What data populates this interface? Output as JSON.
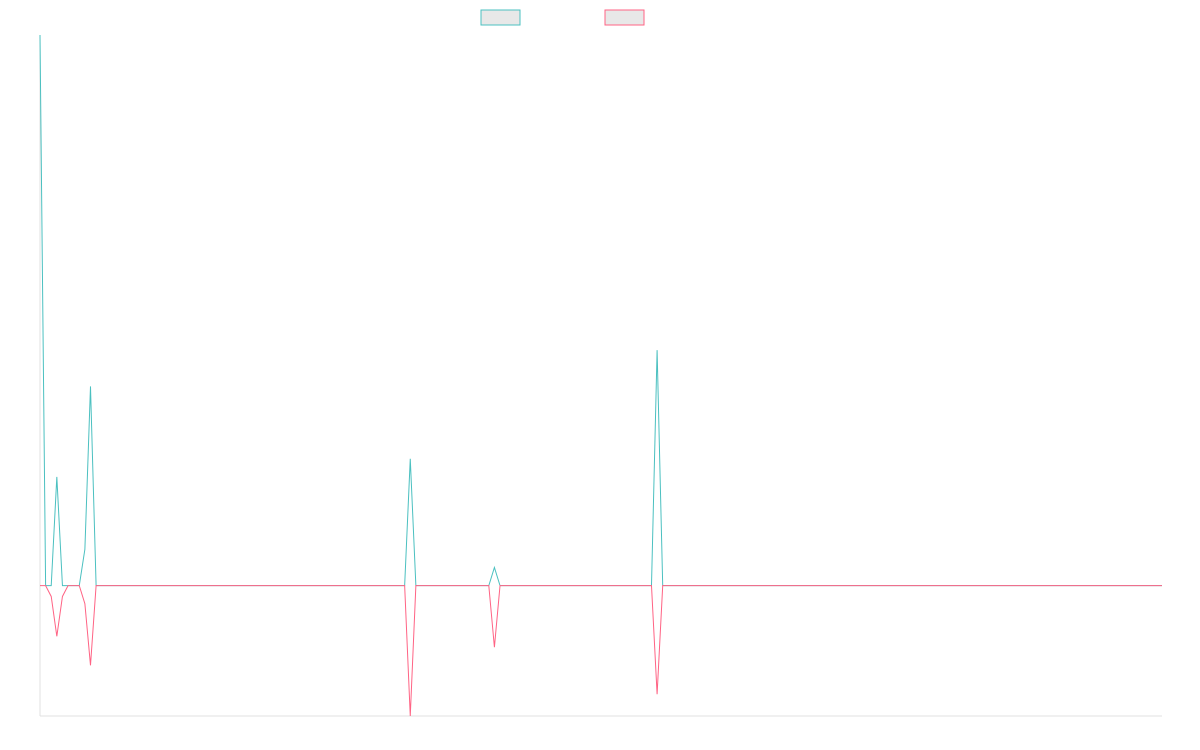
{
  "chart_data": {
    "type": "line",
    "title": "",
    "xlabel": "",
    "ylabel": "",
    "ylim": [
      -36,
      152
    ],
    "grid": false,
    "legend": "top-center",
    "series": [
      {
        "name": "",
        "color": "#4bc0c0",
        "fill": "#e8e8e8",
        "points": [
          [
            0,
            152
          ],
          [
            1,
            0
          ],
          [
            2,
            0
          ],
          [
            3,
            30
          ],
          [
            4,
            0
          ],
          [
            5,
            0
          ],
          [
            6,
            0
          ],
          [
            7,
            0
          ],
          [
            8,
            10
          ],
          [
            9,
            55
          ],
          [
            10,
            0
          ],
          [
            65,
            0
          ],
          [
            66,
            35
          ],
          [
            67,
            0
          ],
          [
            80,
            0
          ],
          [
            81,
            5
          ],
          [
            82,
            0
          ],
          [
            109,
            0
          ],
          [
            110,
            65
          ],
          [
            111,
            0
          ],
          [
            200,
            0
          ]
        ]
      },
      {
        "name": "",
        "color": "#ff6384",
        "fill": "#e8e8e8",
        "points": [
          [
            0,
            0
          ],
          [
            1,
            0
          ],
          [
            2,
            -3
          ],
          [
            3,
            -14
          ],
          [
            4,
            -3
          ],
          [
            5,
            0
          ],
          [
            6,
            0
          ],
          [
            7,
            0
          ],
          [
            8,
            -5
          ],
          [
            9,
            -22
          ],
          [
            10,
            0
          ],
          [
            65,
            0
          ],
          [
            66,
            -36
          ],
          [
            67,
            0
          ],
          [
            80,
            0
          ],
          [
            81,
            -17
          ],
          [
            82,
            0
          ],
          [
            109,
            0
          ],
          [
            110,
            -30
          ],
          [
            111,
            0
          ],
          [
            200,
            0
          ]
        ]
      }
    ],
    "xlim": [
      0,
      200
    ]
  }
}
